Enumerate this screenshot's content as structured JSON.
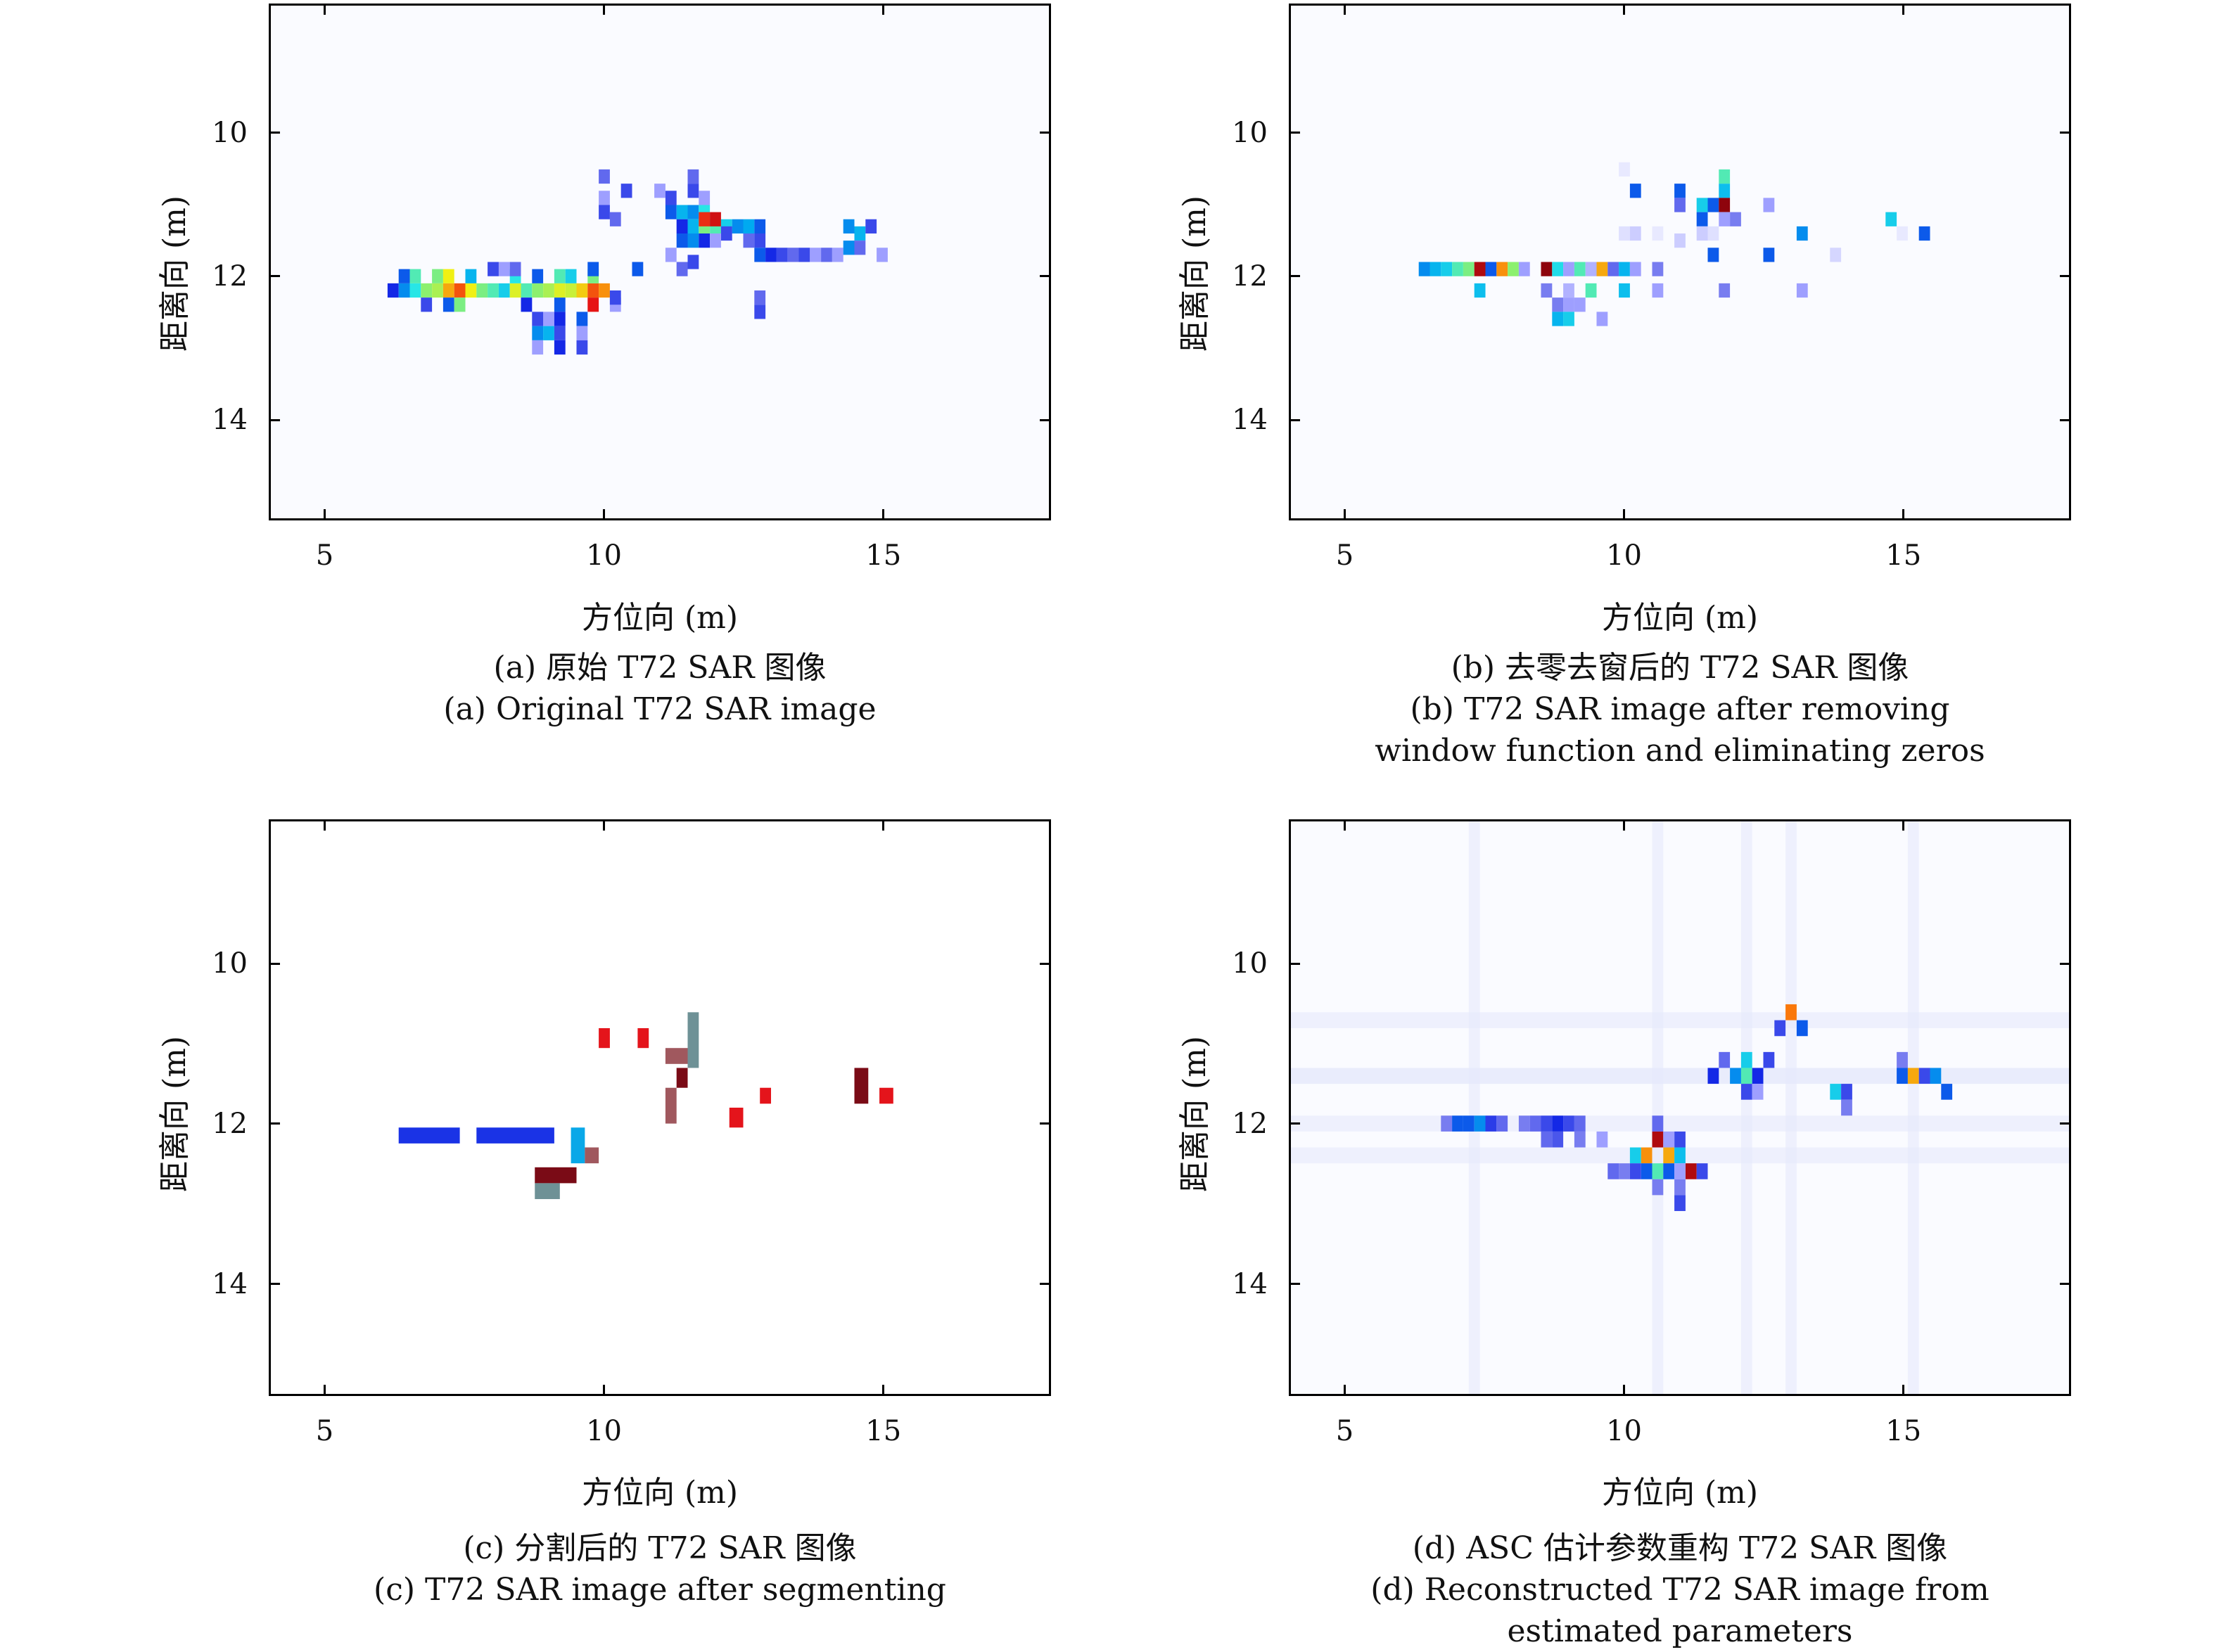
{
  "chart_data": [
    {
      "type": "heatmap",
      "panel": "a",
      "xlabel": "方位向 (m)",
      "ylabel": "距离向 (m)",
      "xticks": [
        5,
        10,
        15
      ],
      "yticks": [
        10,
        12,
        14
      ],
      "xlim": [
        4,
        18
      ],
      "ylim": [
        8.2,
        15.4
      ],
      "y_reversed": true,
      "grid": false,
      "colormap": "jet-on-white",
      "caption_cn": "(a) 原始 T72 SAR 图像",
      "caption_en": [
        "(a) Original T72 SAR image"
      ],
      "cells": [
        [
          6.2,
          12.2,
          0.25
        ],
        [
          6.4,
          12.2,
          0.35
        ],
        [
          6.6,
          12.2,
          0.5
        ],
        [
          6.8,
          12.2,
          0.62
        ],
        [
          7.0,
          12.2,
          0.65
        ],
        [
          7.2,
          12.2,
          0.78
        ],
        [
          7.4,
          12.2,
          0.85
        ],
        [
          7.6,
          12.2,
          0.72
        ],
        [
          7.8,
          12.2,
          0.6
        ],
        [
          8.0,
          12.2,
          0.55
        ],
        [
          8.2,
          12.2,
          0.45
        ],
        [
          8.4,
          12.2,
          0.7
        ],
        [
          8.6,
          12.2,
          0.55
        ],
        [
          8.8,
          12.2,
          0.62
        ],
        [
          9.0,
          12.2,
          0.65
        ],
        [
          9.2,
          12.2,
          0.7
        ],
        [
          9.4,
          12.2,
          0.68
        ],
        [
          9.6,
          12.2,
          0.75
        ],
        [
          9.8,
          12.2,
          0.85
        ],
        [
          10.0,
          12.2,
          0.8
        ],
        [
          6.4,
          12.0,
          0.3
        ],
        [
          6.6,
          12.0,
          0.55
        ],
        [
          7.0,
          12.0,
          0.6
        ],
        [
          7.2,
          12.0,
          0.72
        ],
        [
          7.6,
          12.0,
          0.4
        ],
        [
          8.2,
          11.9,
          0.1
        ],
        [
          8.4,
          12.0,
          0.5
        ],
        [
          8.8,
          12.0,
          0.3
        ],
        [
          9.2,
          12.0,
          0.55
        ],
        [
          9.4,
          12.0,
          0.45
        ],
        [
          9.8,
          12.0,
          0.6
        ],
        [
          6.8,
          12.4,
          0.2
        ],
        [
          7.2,
          12.4,
          0.3
        ],
        [
          7.4,
          12.4,
          0.6
        ],
        [
          8.6,
          12.4,
          0.25
        ],
        [
          9.2,
          12.4,
          0.3
        ],
        [
          9.8,
          12.4,
          0.9
        ],
        [
          10.2,
          12.4,
          0.1
        ],
        [
          8.0,
          11.9,
          0.2
        ],
        [
          8.4,
          11.9,
          0.15
        ],
        [
          9.8,
          11.9,
          0.3
        ],
        [
          10.6,
          11.9,
          0.3
        ],
        [
          10.2,
          12.3,
          0.2
        ],
        [
          9.0,
          12.6,
          0.1
        ],
        [
          9.2,
          12.6,
          0.25
        ],
        [
          9.6,
          12.6,
          0.3
        ],
        [
          8.8,
          12.6,
          0.2
        ],
        [
          8.8,
          12.8,
          0.35
        ],
        [
          9.0,
          12.8,
          0.4
        ],
        [
          9.2,
          12.8,
          0.2
        ],
        [
          9.6,
          12.8,
          0.1
        ],
        [
          8.8,
          13.0,
          0.1
        ],
        [
          9.2,
          13.0,
          0.25
        ],
        [
          9.6,
          13.0,
          0.2
        ],
        [
          10.0,
          10.6,
          0.15
        ],
        [
          10.4,
          10.8,
          0.2
        ],
        [
          10.0,
          10.9,
          0.1
        ],
        [
          10.0,
          11.1,
          0.2
        ],
        [
          10.2,
          11.2,
          0.15
        ],
        [
          11.0,
          10.8,
          0.1
        ],
        [
          11.2,
          10.9,
          0.2
        ],
        [
          11.6,
          10.8,
          0.2
        ],
        [
          11.8,
          10.9,
          0.1
        ],
        [
          11.6,
          10.6,
          0.15
        ],
        [
          11.2,
          11.1,
          0.3
        ],
        [
          11.4,
          11.1,
          0.4
        ],
        [
          11.6,
          11.1,
          0.35
        ],
        [
          11.8,
          11.1,
          0.5
        ],
        [
          11.4,
          11.3,
          0.25
        ],
        [
          11.6,
          11.3,
          0.4
        ],
        [
          11.8,
          11.3,
          0.6
        ],
        [
          12.0,
          11.3,
          0.55
        ],
        [
          11.8,
          11.2,
          0.88
        ],
        [
          12.0,
          11.2,
          0.92
        ],
        [
          12.2,
          11.3,
          0.45
        ],
        [
          12.4,
          11.3,
          0.35
        ],
        [
          12.6,
          11.3,
          0.38
        ],
        [
          12.8,
          11.3,
          0.3
        ],
        [
          12.2,
          11.4,
          0.2
        ],
        [
          12.6,
          11.5,
          0.15
        ],
        [
          12.8,
          11.5,
          0.2
        ],
        [
          11.4,
          11.5,
          0.3
        ],
        [
          11.6,
          11.5,
          0.35
        ],
        [
          11.8,
          11.5,
          0.25
        ],
        [
          12.0,
          11.5,
          0.1
        ],
        [
          11.2,
          11.7,
          0.1
        ],
        [
          11.4,
          11.9,
          0.15
        ],
        [
          11.6,
          11.8,
          0.2
        ],
        [
          12.8,
          11.7,
          0.3
        ],
        [
          13.0,
          11.7,
          0.25
        ],
        [
          13.2,
          11.7,
          0.2
        ],
        [
          13.4,
          11.7,
          0.15
        ],
        [
          13.6,
          11.7,
          0.2
        ],
        [
          13.8,
          11.7,
          0.1
        ],
        [
          14.0,
          11.7,
          0.15
        ],
        [
          14.2,
          11.7,
          0.1
        ],
        [
          12.8,
          12.3,
          0.15
        ],
        [
          12.8,
          12.5,
          0.2
        ],
        [
          14.4,
          11.3,
          0.35
        ],
        [
          14.6,
          11.4,
          0.4
        ],
        [
          14.8,
          11.3,
          0.2
        ],
        [
          14.6,
          11.6,
          0.15
        ],
        [
          15.0,
          11.7,
          0.1
        ],
        [
          14.4,
          11.6,
          0.35
        ]
      ]
    },
    {
      "type": "heatmap",
      "panel": "b",
      "xlabel": "方位向 (m)",
      "ylabel": "距离向 (m)",
      "xticks": [
        5,
        10,
        15
      ],
      "yticks": [
        10,
        12,
        14
      ],
      "xlim": [
        4,
        18
      ],
      "ylim": [
        8.2,
        15.4
      ],
      "y_reversed": true,
      "grid": false,
      "colormap": "jet-on-white",
      "caption_cn": "(b) 去零去窗后的 T72 SAR 图像",
      "caption_en": [
        "(b) T72 SAR image after removing",
        "window function and eliminating zeros"
      ],
      "cells": [
        [
          6.4,
          11.9,
          0.35
        ],
        [
          6.6,
          11.9,
          0.4
        ],
        [
          6.8,
          11.9,
          0.45
        ],
        [
          7.0,
          11.9,
          0.55
        ],
        [
          7.2,
          11.9,
          0.6
        ],
        [
          7.4,
          11.9,
          0.95
        ],
        [
          7.6,
          11.9,
          0.3
        ],
        [
          7.8,
          11.9,
          0.8
        ],
        [
          8.0,
          11.9,
          0.62
        ],
        [
          8.2,
          11.9,
          0.1
        ],
        [
          8.6,
          11.9,
          0.98
        ],
        [
          8.8,
          11.9,
          0.48
        ],
        [
          9.0,
          11.9,
          0.1
        ],
        [
          9.2,
          11.9,
          0.55
        ],
        [
          9.4,
          11.9,
          0.08
        ],
        [
          9.6,
          11.9,
          0.78
        ],
        [
          9.8,
          11.9,
          0.15
        ],
        [
          10.0,
          11.9,
          0.4
        ],
        [
          10.2,
          11.9,
          0.1
        ],
        [
          10.6,
          11.9,
          0.12
        ],
        [
          7.4,
          12.2,
          0.42
        ],
        [
          8.6,
          12.2,
          0.12
        ],
        [
          9.0,
          12.2,
          0.08
        ],
        [
          9.4,
          12.2,
          0.55
        ],
        [
          10.0,
          12.2,
          0.42
        ],
        [
          10.6,
          12.2,
          0.1
        ],
        [
          11.8,
          12.2,
          0.12
        ],
        [
          13.2,
          12.2,
          0.1
        ],
        [
          8.8,
          12.4,
          0.12
        ],
        [
          9.0,
          12.4,
          0.1
        ],
        [
          9.2,
          12.4,
          0.1
        ],
        [
          8.8,
          12.6,
          0.4
        ],
        [
          9.0,
          12.6,
          0.45
        ],
        [
          9.6,
          12.6,
          0.1
        ],
        [
          10.2,
          10.8,
          0.3
        ],
        [
          11.0,
          10.8,
          0.3
        ],
        [
          11.8,
          10.8,
          0.42
        ],
        [
          11.8,
          10.6,
          0.55
        ],
        [
          11.0,
          11.0,
          0.15
        ],
        [
          11.4,
          11.0,
          0.45
        ],
        [
          11.6,
          11.0,
          0.3
        ],
        [
          11.8,
          11.0,
          0.98
        ],
        [
          12.6,
          11.0,
          0.1
        ],
        [
          11.4,
          11.2,
          0.3
        ],
        [
          11.8,
          11.2,
          0.1
        ],
        [
          12.0,
          11.2,
          0.12
        ],
        [
          10.0,
          11.4,
          0.03
        ],
        [
          10.2,
          11.4,
          0.05
        ],
        [
          10.6,
          11.4,
          0.02
        ],
        [
          11.0,
          11.5,
          0.05
        ],
        [
          11.4,
          11.4,
          0.05
        ],
        [
          11.6,
          11.4,
          0.03
        ],
        [
          13.2,
          11.4,
          0.35
        ],
        [
          11.6,
          11.7,
          0.3
        ],
        [
          12.6,
          11.7,
          0.3
        ],
        [
          13.8,
          11.7,
          0.04
        ],
        [
          14.8,
          11.2,
          0.45
        ],
        [
          15.0,
          11.4,
          0.02
        ],
        [
          15.4,
          11.4,
          0.3
        ],
        [
          10.0,
          10.5,
          0.02
        ]
      ]
    },
    {
      "type": "heatmap",
      "panel": "c",
      "xlabel": "方位向 (m)",
      "ylabel": "距离向 (m)",
      "xticks": [
        5,
        10,
        15
      ],
      "yticks": [
        10,
        12,
        14
      ],
      "xlim": [
        4,
        18
      ],
      "ylim": [
        8.2,
        15.4
      ],
      "y_reversed": true,
      "grid": false,
      "colormap": "segment-classes",
      "caption_cn": "(c) 分割后的 T72 SAR 图像",
      "caption_en": [
        "(c) T72 SAR image after segmenting"
      ],
      "segments": [
        {
          "x0": 6.3,
          "x1": 7.4,
          "y0": 12.05,
          "y1": 12.25,
          "color": "#1a33e6"
        },
        {
          "x0": 7.7,
          "x1": 9.1,
          "y0": 12.05,
          "y1": 12.25,
          "color": "#1a33e6"
        },
        {
          "x0": 9.4,
          "x1": 9.65,
          "y0": 12.05,
          "y1": 12.5,
          "color": "#0aa8e8"
        },
        {
          "x0": 9.65,
          "x1": 9.9,
          "y0": 12.3,
          "y1": 12.5,
          "color": "#a0585e"
        },
        {
          "x0": 8.75,
          "x1": 9.5,
          "y0": 12.55,
          "y1": 12.75,
          "color": "#7a0b16"
        },
        {
          "x0": 8.75,
          "x1": 9.2,
          "y0": 12.75,
          "y1": 12.95,
          "color": "#6e9196"
        },
        {
          "x0": 9.9,
          "x1": 10.1,
          "y0": 10.8,
          "y1": 11.05,
          "color": "#e4141b"
        },
        {
          "x0": 10.6,
          "x1": 10.8,
          "y0": 10.8,
          "y1": 11.05,
          "color": "#e4141b"
        },
        {
          "x0": 11.1,
          "x1": 11.5,
          "y0": 11.05,
          "y1": 11.25,
          "color": "#a0585e"
        },
        {
          "x0": 11.5,
          "x1": 11.7,
          "y0": 10.6,
          "y1": 11.3,
          "color": "#6e9196"
        },
        {
          "x0": 11.3,
          "x1": 11.5,
          "y0": 11.3,
          "y1": 11.55,
          "color": "#7a0b16"
        },
        {
          "x0": 11.1,
          "x1": 11.3,
          "y0": 11.55,
          "y1": 12.0,
          "color": "#a0585e"
        },
        {
          "x0": 12.25,
          "x1": 12.5,
          "y0": 11.8,
          "y1": 12.05,
          "color": "#e4141b"
        },
        {
          "x0": 12.8,
          "x1": 13.0,
          "y0": 11.55,
          "y1": 11.75,
          "color": "#e4141b"
        },
        {
          "x0": 14.5,
          "x1": 14.75,
          "y0": 11.3,
          "y1": 11.75,
          "color": "#7a0b16"
        },
        {
          "x0": 14.95,
          "x1": 15.2,
          "y0": 11.55,
          "y1": 11.75,
          "color": "#e4141b"
        }
      ]
    },
    {
      "type": "heatmap",
      "panel": "d",
      "xlabel": "方位向 (m)",
      "ylabel": "距离向 (m)",
      "xticks": [
        5,
        10,
        15
      ],
      "yticks": [
        10,
        12,
        14
      ],
      "xlim": [
        4,
        18
      ],
      "ylim": [
        8.2,
        15.4
      ],
      "y_reversed": true,
      "grid": false,
      "colormap": "jet-on-white",
      "caption_cn": "(d) ASC 估计参数重构 T72 SAR 图像",
      "caption_en": [
        "(d) Reconstructed T72 SAR image from",
        "estimated parameters"
      ],
      "cells": [
        [
          10.6,
          12.2,
          0.95
        ],
        [
          10.4,
          12.4,
          0.8
        ],
        [
          10.8,
          12.4,
          0.78
        ],
        [
          10.2,
          12.4,
          0.45
        ],
        [
          11.0,
          12.4,
          0.42
        ],
        [
          10.6,
          12.6,
          0.55
        ],
        [
          10.4,
          12.6,
          0.3
        ],
        [
          10.8,
          12.6,
          0.3
        ],
        [
          11.2,
          12.6,
          0.95
        ],
        [
          11.0,
          12.6,
          0.1
        ],
        [
          10.6,
          12.8,
          0.12
        ],
        [
          11.0,
          12.8,
          0.12
        ],
        [
          10.0,
          12.6,
          0.12
        ],
        [
          10.2,
          12.6,
          0.2
        ],
        [
          9.8,
          12.6,
          0.15
        ],
        [
          11.4,
          12.6,
          0.2
        ],
        [
          11.0,
          12.2,
          0.2
        ],
        [
          10.8,
          12.2,
          0.1
        ],
        [
          10.6,
          12.0,
          0.15
        ],
        [
          11.0,
          13.0,
          0.2
        ],
        [
          13.0,
          10.6,
          0.82
        ],
        [
          13.2,
          10.8,
          0.3
        ],
        [
          12.8,
          10.8,
          0.2
        ],
        [
          12.2,
          11.2,
          0.45
        ],
        [
          12.2,
          11.4,
          0.55
        ],
        [
          12.0,
          11.4,
          0.35
        ],
        [
          12.4,
          11.4,
          0.25
        ],
        [
          11.8,
          11.2,
          0.15
        ],
        [
          12.6,
          11.2,
          0.2
        ],
        [
          11.6,
          11.4,
          0.25
        ],
        [
          12.2,
          11.6,
          0.2
        ],
        [
          12.4,
          11.6,
          0.1
        ],
        [
          13.8,
          11.6,
          0.45
        ],
        [
          14.0,
          11.6,
          0.2
        ],
        [
          14.0,
          11.8,
          0.12
        ],
        [
          15.0,
          11.4,
          0.3
        ],
        [
          15.2,
          11.4,
          0.78
        ],
        [
          15.4,
          11.4,
          0.2
        ],
        [
          15.6,
          11.4,
          0.35
        ],
        [
          15.8,
          11.6,
          0.3
        ],
        [
          15.0,
          11.2,
          0.12
        ],
        [
          6.8,
          12.0,
          0.12
        ],
        [
          7.0,
          12.0,
          0.3
        ],
        [
          7.2,
          12.0,
          0.3
        ],
        [
          7.4,
          12.0,
          0.35
        ],
        [
          7.6,
          12.0,
          0.22
        ],
        [
          7.8,
          12.0,
          0.15
        ],
        [
          8.2,
          12.0,
          0.12
        ],
        [
          8.4,
          12.0,
          0.15
        ],
        [
          8.6,
          12.0,
          0.2
        ],
        [
          8.8,
          12.0,
          0.25
        ],
        [
          9.0,
          12.0,
          0.2
        ],
        [
          9.2,
          12.0,
          0.15
        ],
        [
          8.6,
          12.2,
          0.15
        ],
        [
          8.8,
          12.2,
          0.18
        ],
        [
          9.2,
          12.2,
          0.12
        ],
        [
          9.6,
          12.2,
          0.1
        ]
      ]
    }
  ],
  "colors": {
    "background": "#ffffff",
    "plot_background": "#fafbff",
    "frame": "#000000"
  }
}
